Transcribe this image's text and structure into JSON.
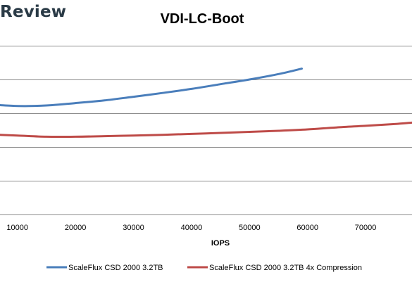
{
  "brand": {
    "text": "Review"
  },
  "chart_data": {
    "type": "line",
    "title": "VDI-LC-Boot",
    "xlabel": "IOPS",
    "ylabel": "",
    "xlim": [
      7000,
      78000
    ],
    "ylim": [
      0,
      1.5
    ],
    "grid": true,
    "legend_position": "bottom",
    "x_ticks": [
      10000,
      20000,
      30000,
      40000,
      50000,
      60000,
      70000
    ],
    "y_gridlines": [
      1.25,
      1.0,
      0.75,
      0.5,
      0.25
    ],
    "series": [
      {
        "name": "ScaleFlux CSD 2000 3.2TB",
        "color": "#4a7ebb",
        "x": [
          7000,
          9000,
          12000,
          16000,
          20000,
          25000,
          30000,
          35000,
          40000,
          45000,
          50000,
          55000,
          59000
        ],
        "y": [
          0.81,
          0.805,
          0.803,
          0.81,
          0.825,
          0.845,
          0.872,
          0.9,
          0.93,
          0.965,
          1.0,
          1.04,
          1.08
        ]
      },
      {
        "name": "ScaleFlux CSD 2000 3.2TB 4x Compression",
        "color": "#be4b48",
        "x": [
          7000,
          10000,
          15000,
          20000,
          25000,
          30000,
          35000,
          40000,
          45000,
          50000,
          55000,
          60000,
          65000,
          70000,
          75000,
          78000
        ],
        "y": [
          0.59,
          0.585,
          0.576,
          0.576,
          0.58,
          0.585,
          0.59,
          0.597,
          0.604,
          0.612,
          0.62,
          0.63,
          0.645,
          0.657,
          0.67,
          0.68
        ]
      }
    ]
  }
}
